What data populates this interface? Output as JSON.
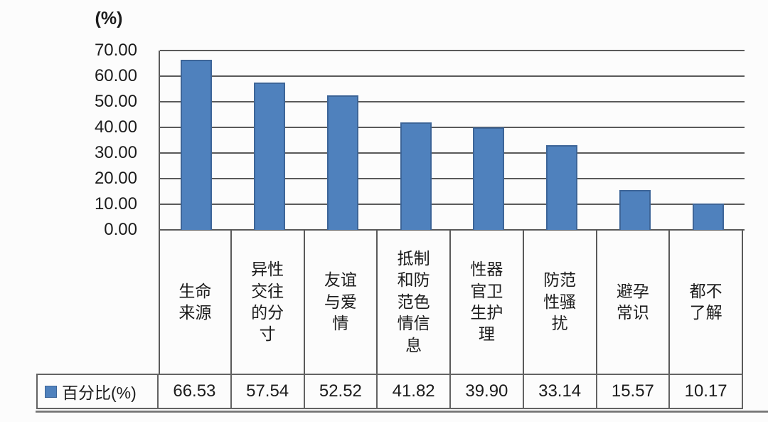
{
  "chart_data": {
    "type": "bar",
    "title": "",
    "ylabel": "(%)",
    "categories": [
      "生命来源",
      "异性交往的分寸",
      "友谊与爱情",
      "抵制和防范色情信息",
      "性器官卫生护理",
      "防范性骚扰",
      "避孕常识",
      "都不了解"
    ],
    "series": [
      {
        "name": "百分比(%)",
        "values": [
          66.53,
          57.54,
          52.52,
          41.82,
          39.9,
          33.14,
          15.57,
          10.17
        ]
      }
    ],
    "ylim": [
      0,
      70
    ],
    "ytick_step": 10,
    "ytick_labels": [
      "70.00",
      "60.00",
      "50.00",
      "40.00",
      "30.00",
      "20.00",
      "10.00",
      "0.00"
    ],
    "grid": true,
    "legend_position": "bottom-table-left",
    "colors": {
      "bar_fill": "#4f81bd",
      "bar_border": "#3d6598",
      "gridline": "#5a5a5a",
      "text": "#1c1c1c",
      "table_border": "#636363",
      "background": "#fcfcfc"
    }
  },
  "table": {
    "legend_label": "百分比(%)",
    "values": [
      "66.53",
      "57.54",
      "52.52",
      "41.82",
      "39.90",
      "33.14",
      "15.57",
      "10.17"
    ]
  }
}
